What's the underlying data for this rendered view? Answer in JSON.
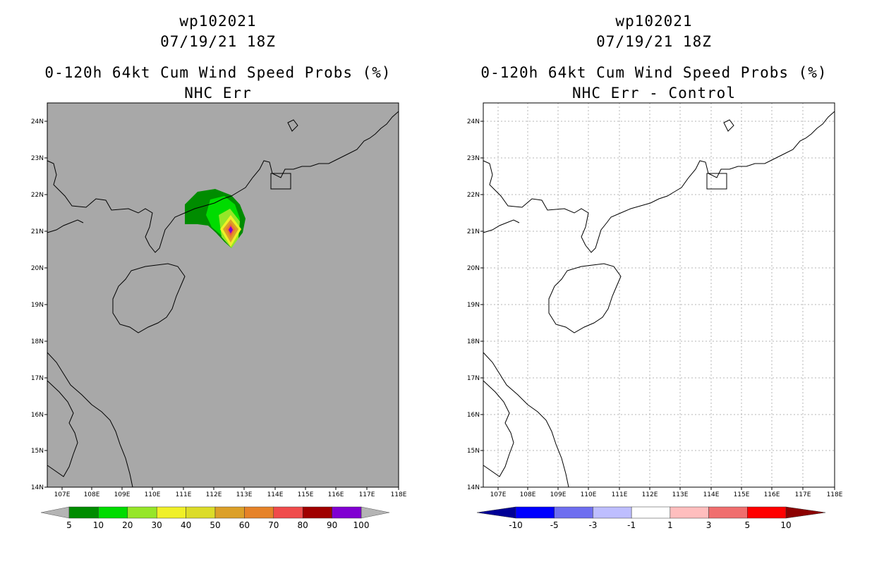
{
  "left_panel": {
    "title_line1": "wp102021",
    "title_line2": "07/19/21 18Z",
    "title_line3": "0-120h 64kt Cum Wind Speed Probs (%)",
    "title_line4": "NHC Err",
    "background_color": "#a8a8a8",
    "colorbar": {
      "labels": [
        "5",
        "10",
        "20",
        "30",
        "40",
        "50",
        "60",
        "70",
        "80",
        "90",
        "100"
      ],
      "colors": [
        "#008c00",
        "#00dc00",
        "#96e628",
        "#f0f028",
        "#dcdc28",
        "#dca028",
        "#e68228",
        "#f04b4b",
        "#a00000",
        "#8000d2"
      ],
      "end_color": "#b4b4b4"
    }
  },
  "right_panel": {
    "title_line1": "wp102021",
    "title_line2": "07/19/21 18Z",
    "title_line3": "0-120h 64kt Cum Wind Speed Probs (%)",
    "title_line4": "NHC Err - Control",
    "background_color": "#ffffff",
    "colorbar": {
      "labels": [
        "-10",
        "-5",
        "-3",
        "-1",
        "1",
        "3",
        "5",
        "10"
      ],
      "colors": [
        "#0000ff",
        "#6e6ef0",
        "#bebeff",
        "#ffffff",
        "#ffbebe",
        "#f06e6e",
        "#ff0000"
      ],
      "left_end_color": "#000096",
      "right_end_color": "#8c0000"
    }
  },
  "map": {
    "lat_labels": [
      "24N",
      "23N",
      "22N",
      "21N",
      "20N",
      "19N",
      "18N",
      "17N",
      "16N",
      "15N",
      "14N"
    ],
    "lon_labels": [
      "107E",
      "108E",
      "109E",
      "110E",
      "111E",
      "112E",
      "113E",
      "114E",
      "115E",
      "116E",
      "117E",
      "118E"
    ]
  }
}
